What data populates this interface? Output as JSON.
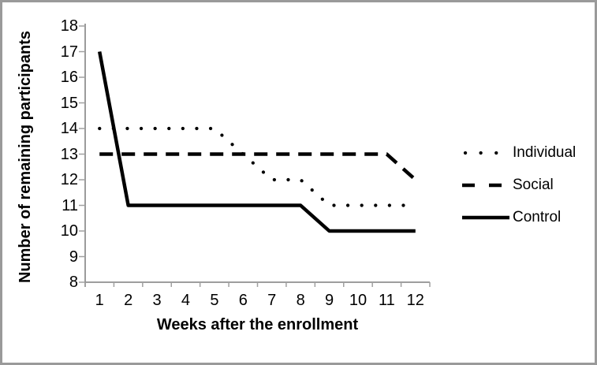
{
  "window": {
    "background": "#ffffff",
    "border_color": "#9a9a9a"
  },
  "chart_data": {
    "type": "line",
    "title": "",
    "xlabel": "Weeks after the enrollment",
    "ylabel": "Number of remaining participants",
    "categories": [
      1,
      2,
      3,
      4,
      5,
      6,
      7,
      8,
      9,
      10,
      11,
      12
    ],
    "yticks": [
      8,
      9,
      10,
      11,
      12,
      13,
      14,
      15,
      16,
      17,
      18
    ],
    "ylim": [
      8,
      18
    ],
    "grid": false,
    "legend_position": "right",
    "axis_color": "#909090",
    "tick_color": "#a0a0a0",
    "text_color": "#000000",
    "line_color": "#000000",
    "series": [
      {
        "name": "Individual",
        "style": "dotted",
        "color": "#000000",
        "values": [
          14,
          14,
          14,
          14,
          14,
          13,
          12,
          12,
          11,
          11,
          11,
          11
        ]
      },
      {
        "name": "Social",
        "style": "dashed",
        "color": "#000000",
        "values": [
          13,
          13,
          13,
          13,
          13,
          13,
          13,
          13,
          13,
          13,
          13,
          12
        ]
      },
      {
        "name": "Control",
        "style": "solid",
        "color": "#000000",
        "values": [
          17,
          11,
          11,
          11,
          11,
          11,
          11,
          11,
          10,
          10,
          10,
          10
        ]
      }
    ]
  }
}
